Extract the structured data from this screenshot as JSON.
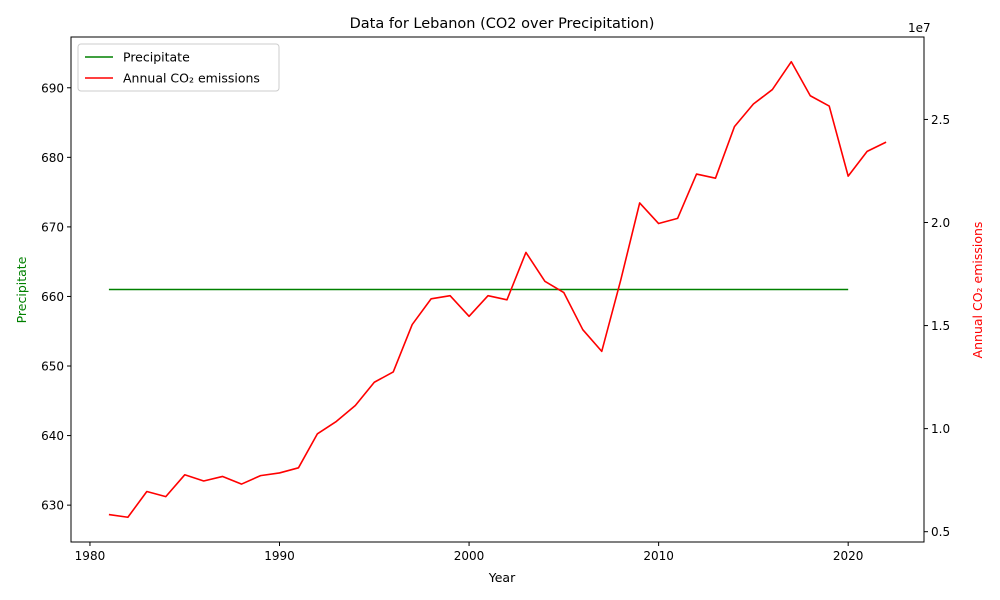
{
  "chart_data": {
    "type": "line",
    "title": "Data for Lebanon (CO2 over Precipitation)",
    "xlabel": "Year",
    "ylabel_left": "Precipitate",
    "ylabel_right": "Annual CO₂ emissions",
    "right_axis_offset_label": "1e7",
    "xlim": [
      1979,
      2024
    ],
    "ylim_left": [
      624.7,
      697.3
    ],
    "ylim_right": [
      0.45,
      2.9
    ],
    "x_ticks": [
      1980,
      1990,
      2000,
      2010,
      2020
    ],
    "y_ticks_left": [
      630,
      640,
      650,
      660,
      670,
      680,
      690
    ],
    "y_ticks_right": [
      0.5,
      1.0,
      1.5,
      2.0,
      2.5
    ],
    "legend_position": "upper-left",
    "grid": false,
    "series": [
      {
        "name": "Precipitate",
        "axis": "left",
        "color": "#008000",
        "x": [
          1981,
          2020
        ],
        "values": [
          661,
          661
        ]
      },
      {
        "name": "Annual CO₂ emissions",
        "axis": "right",
        "color": "#ff0000",
        "x": [
          1981,
          1982,
          1983,
          1984,
          1985,
          1986,
          1987,
          1988,
          1989,
          1990,
          1991,
          1992,
          1993,
          1994,
          1995,
          1996,
          1997,
          1998,
          1999,
          2000,
          2001,
          2002,
          2003,
          2004,
          2005,
          2006,
          2007,
          2008,
          2009,
          2010,
          2011,
          2012,
          2013,
          2014,
          2015,
          2016,
          2017,
          2018,
          2019,
          2020,
          2021,
          2022
        ],
        "values": [
          0.583,
          0.57,
          0.695,
          0.67,
          0.776,
          0.746,
          0.768,
          0.731,
          0.772,
          0.785,
          0.81,
          0.975,
          1.035,
          1.112,
          1.225,
          1.275,
          1.505,
          1.63,
          1.645,
          1.545,
          1.645,
          1.625,
          1.855,
          1.715,
          1.66,
          1.48,
          1.375,
          1.72,
          2.095,
          1.995,
          2.02,
          2.235,
          2.215,
          2.465,
          2.575,
          2.645,
          2.78,
          2.615,
          2.565,
          2.225,
          2.345,
          2.39
        ]
      }
    ]
  }
}
